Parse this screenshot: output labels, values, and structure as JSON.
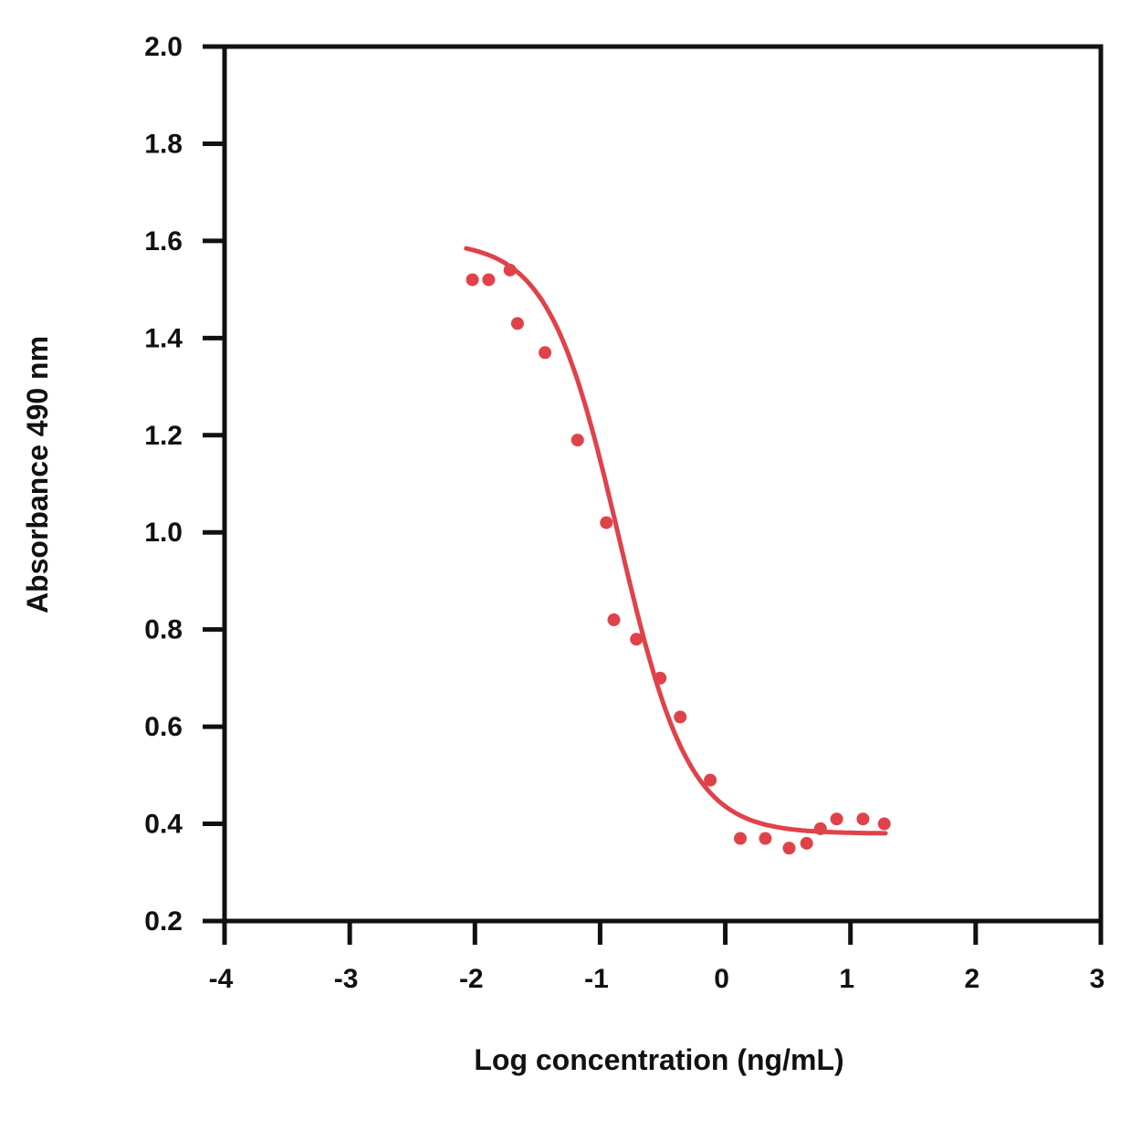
{
  "chart_data": {
    "type": "scatter",
    "title": "",
    "xlabel": "Log concentration (ng/mL)",
    "ylabel": "Absorbance 490 nm",
    "xlim": [
      -4,
      3
    ],
    "ylim": [
      0.2,
      2.0
    ],
    "x_ticks": [
      -4,
      -3,
      -2,
      -1,
      0,
      1,
      2,
      3
    ],
    "x_tick_labels": [
      "-4",
      "-3",
      "-2",
      "-1",
      "0",
      "1",
      "2",
      "3"
    ],
    "y_ticks": [
      0.2,
      0.4,
      0.6,
      0.8,
      1.0,
      1.2,
      1.4,
      1.6,
      1.8,
      2.0
    ],
    "y_tick_labels": [
      "0.2",
      "0.4",
      "0.6",
      "0.8",
      "1.0",
      "1.2",
      "1.4",
      "1.6",
      "1.8",
      "2.0"
    ],
    "grid": false,
    "legend": "none",
    "color": "#e0424a",
    "series": [
      {
        "kind": "points",
        "x": [
          -2.02,
          -1.89,
          -1.72,
          -1.66,
          -1.44,
          -1.18,
          -0.95,
          -0.89,
          -0.71,
          -0.52,
          -0.36,
          -0.12,
          0.12,
          0.32,
          0.51,
          0.65,
          0.76,
          0.89,
          1.1,
          1.27
        ],
        "y": [
          1.52,
          1.52,
          1.54,
          1.43,
          1.37,
          1.19,
          1.02,
          0.82,
          0.78,
          0.7,
          0.62,
          0.49,
          0.37,
          0.37,
          0.35,
          0.36,
          0.39,
          0.41,
          0.41,
          0.4
        ]
      },
      {
        "kind": "fit-curve",
        "model": "4PL",
        "top": 1.6,
        "bottom": 0.38,
        "log_ec50": -0.85,
        "hill_slope": -1.55,
        "x_range": [
          -2.07,
          1.28
        ]
      }
    ]
  }
}
